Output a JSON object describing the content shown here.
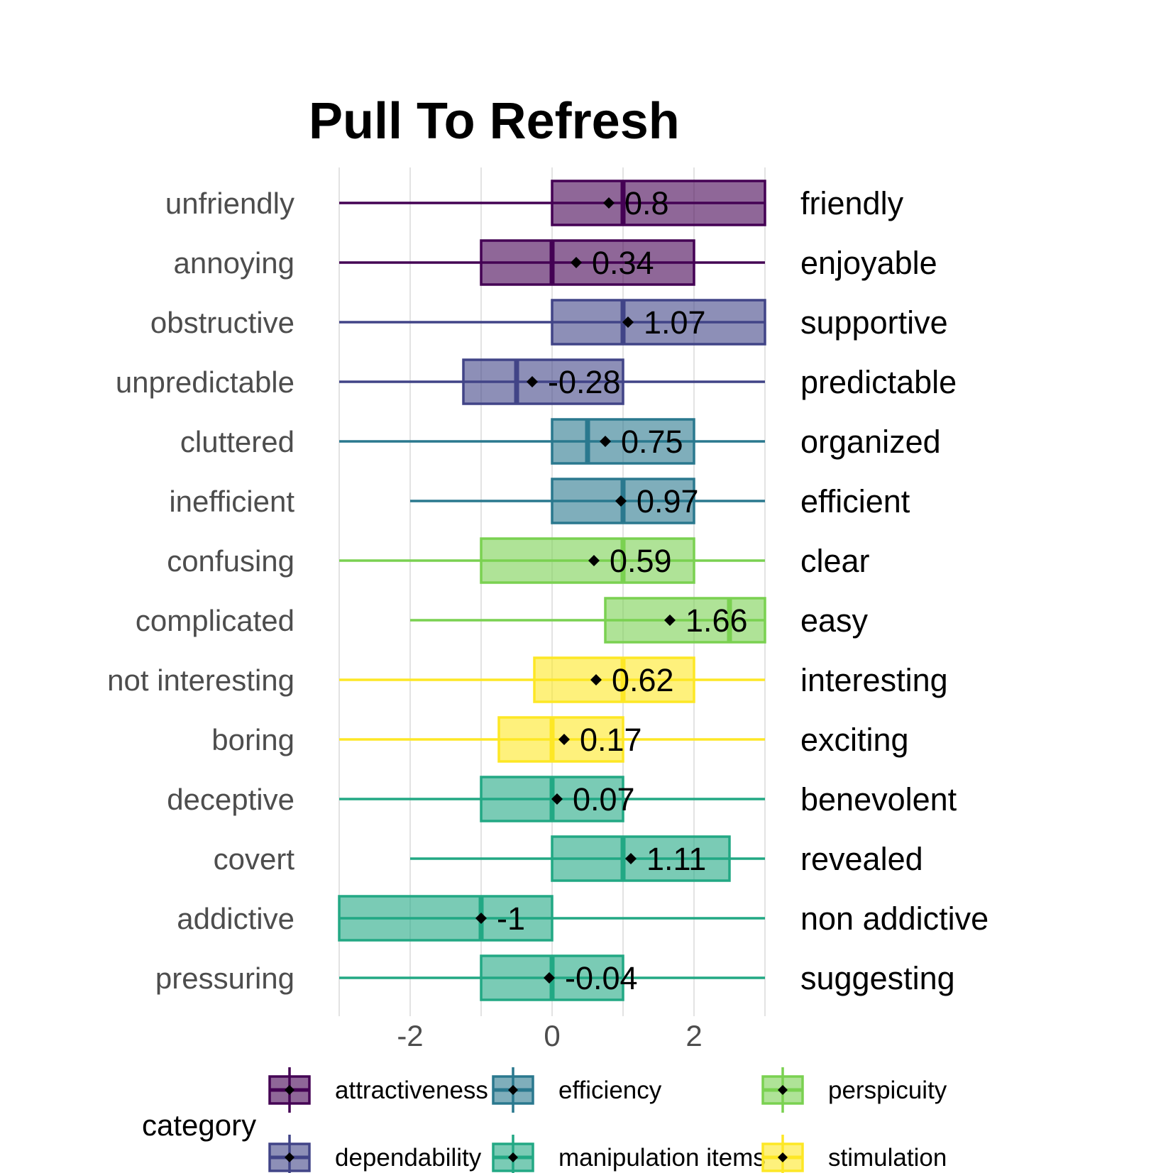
{
  "chart_data": {
    "type": "boxplot",
    "title": "Pull To Refresh",
    "xlim": [
      -3,
      3
    ],
    "x_ticks": [
      -2,
      0,
      2
    ],
    "x_tick_labels": [
      "-2",
      "0",
      "2"
    ],
    "grid": true,
    "legend_placement": "bottom",
    "legend_title": "category",
    "categories": [
      {
        "name": "attractiveness",
        "color": "#440154"
      },
      {
        "name": "dependability",
        "color": "#414487"
      },
      {
        "name": "efficiency",
        "color": "#2a788e"
      },
      {
        "name": "manipulation items",
        "color": "#22a884"
      },
      {
        "name": "perspicuity",
        "color": "#7ad151"
      },
      {
        "name": "stimulation",
        "color": "#fde725"
      }
    ],
    "legend_order": [
      "attractiveness",
      "efficiency",
      "perspicuity",
      "dependability",
      "manipulation items",
      "stimulation"
    ],
    "items": [
      {
        "left": "unfriendly",
        "right": "friendly",
        "category": "attractiveness",
        "whisker_low": -3,
        "q1": 0,
        "median": 1,
        "q3": 3,
        "whisker_high": 3,
        "mean": 0.8,
        "mean_label": "0.8"
      },
      {
        "left": "annoying",
        "right": "enjoyable",
        "category": "attractiveness",
        "whisker_low": -3,
        "q1": -1,
        "median": 0,
        "q3": 2,
        "whisker_high": 3,
        "mean": 0.34,
        "mean_label": "0.34"
      },
      {
        "left": "obstructive",
        "right": "supportive",
        "category": "dependability",
        "whisker_low": -3,
        "q1": 0,
        "median": 1,
        "q3": 3,
        "whisker_high": 3,
        "mean": 1.07,
        "mean_label": "1.07"
      },
      {
        "left": "unpredictable",
        "right": "predictable",
        "category": "dependability",
        "whisker_low": -3,
        "q1": -1.25,
        "median": -0.5,
        "q3": 1,
        "whisker_high": 3,
        "mean": -0.28,
        "mean_label": "-0.28"
      },
      {
        "left": "cluttered",
        "right": "organized",
        "category": "efficiency",
        "whisker_low": -3,
        "q1": 0,
        "median": 0.5,
        "q3": 2,
        "whisker_high": 3,
        "mean": 0.75,
        "mean_label": "0.75"
      },
      {
        "left": "inefficient",
        "right": "efficient",
        "category": "efficiency",
        "whisker_low": -2,
        "q1": 0,
        "median": 1,
        "q3": 2,
        "whisker_high": 3,
        "mean": 0.97,
        "mean_label": "0.97"
      },
      {
        "left": "confusing",
        "right": "clear",
        "category": "perspicuity",
        "whisker_low": -3,
        "q1": -1,
        "median": 1,
        "q3": 2,
        "whisker_high": 3,
        "mean": 0.59,
        "mean_label": "0.59"
      },
      {
        "left": "complicated",
        "right": "easy",
        "category": "perspicuity",
        "whisker_low": -2,
        "q1": 0.75,
        "median": 2.5,
        "q3": 3,
        "whisker_high": 3,
        "mean": 1.66,
        "mean_label": "1.66"
      },
      {
        "left": "not interesting",
        "right": "interesting",
        "category": "stimulation",
        "whisker_low": -3,
        "q1": -0.25,
        "median": 1,
        "q3": 2,
        "whisker_high": 3,
        "mean": 0.62,
        "mean_label": "0.62"
      },
      {
        "left": "boring",
        "right": "exciting",
        "category": "stimulation",
        "whisker_low": -3,
        "q1": -0.75,
        "median": 0,
        "q3": 1,
        "whisker_high": 3,
        "mean": 0.17,
        "mean_label": "0.17"
      },
      {
        "left": "deceptive",
        "right": "benevolent",
        "category": "manipulation items",
        "whisker_low": -3,
        "q1": -1,
        "median": 0,
        "q3": 1,
        "whisker_high": 3,
        "mean": 0.07,
        "mean_label": "0.07"
      },
      {
        "left": "covert",
        "right": "revealed",
        "category": "manipulation items",
        "whisker_low": -2,
        "q1": 0,
        "median": 1,
        "q3": 2.5,
        "whisker_high": 3,
        "mean": 1.11,
        "mean_label": "1.11"
      },
      {
        "left": "addictive",
        "right": "non addictive",
        "category": "manipulation items",
        "whisker_low": -3,
        "q1": -3,
        "median": -1,
        "q3": 0,
        "whisker_high": 3,
        "mean": -1,
        "mean_label": "-1"
      },
      {
        "left": "pressuring",
        "right": "suggesting",
        "category": "manipulation items",
        "whisker_low": -3,
        "q1": -1,
        "median": 0,
        "q3": 1,
        "whisker_high": 3,
        "mean": -0.04,
        "mean_label": "-0.04"
      }
    ]
  }
}
